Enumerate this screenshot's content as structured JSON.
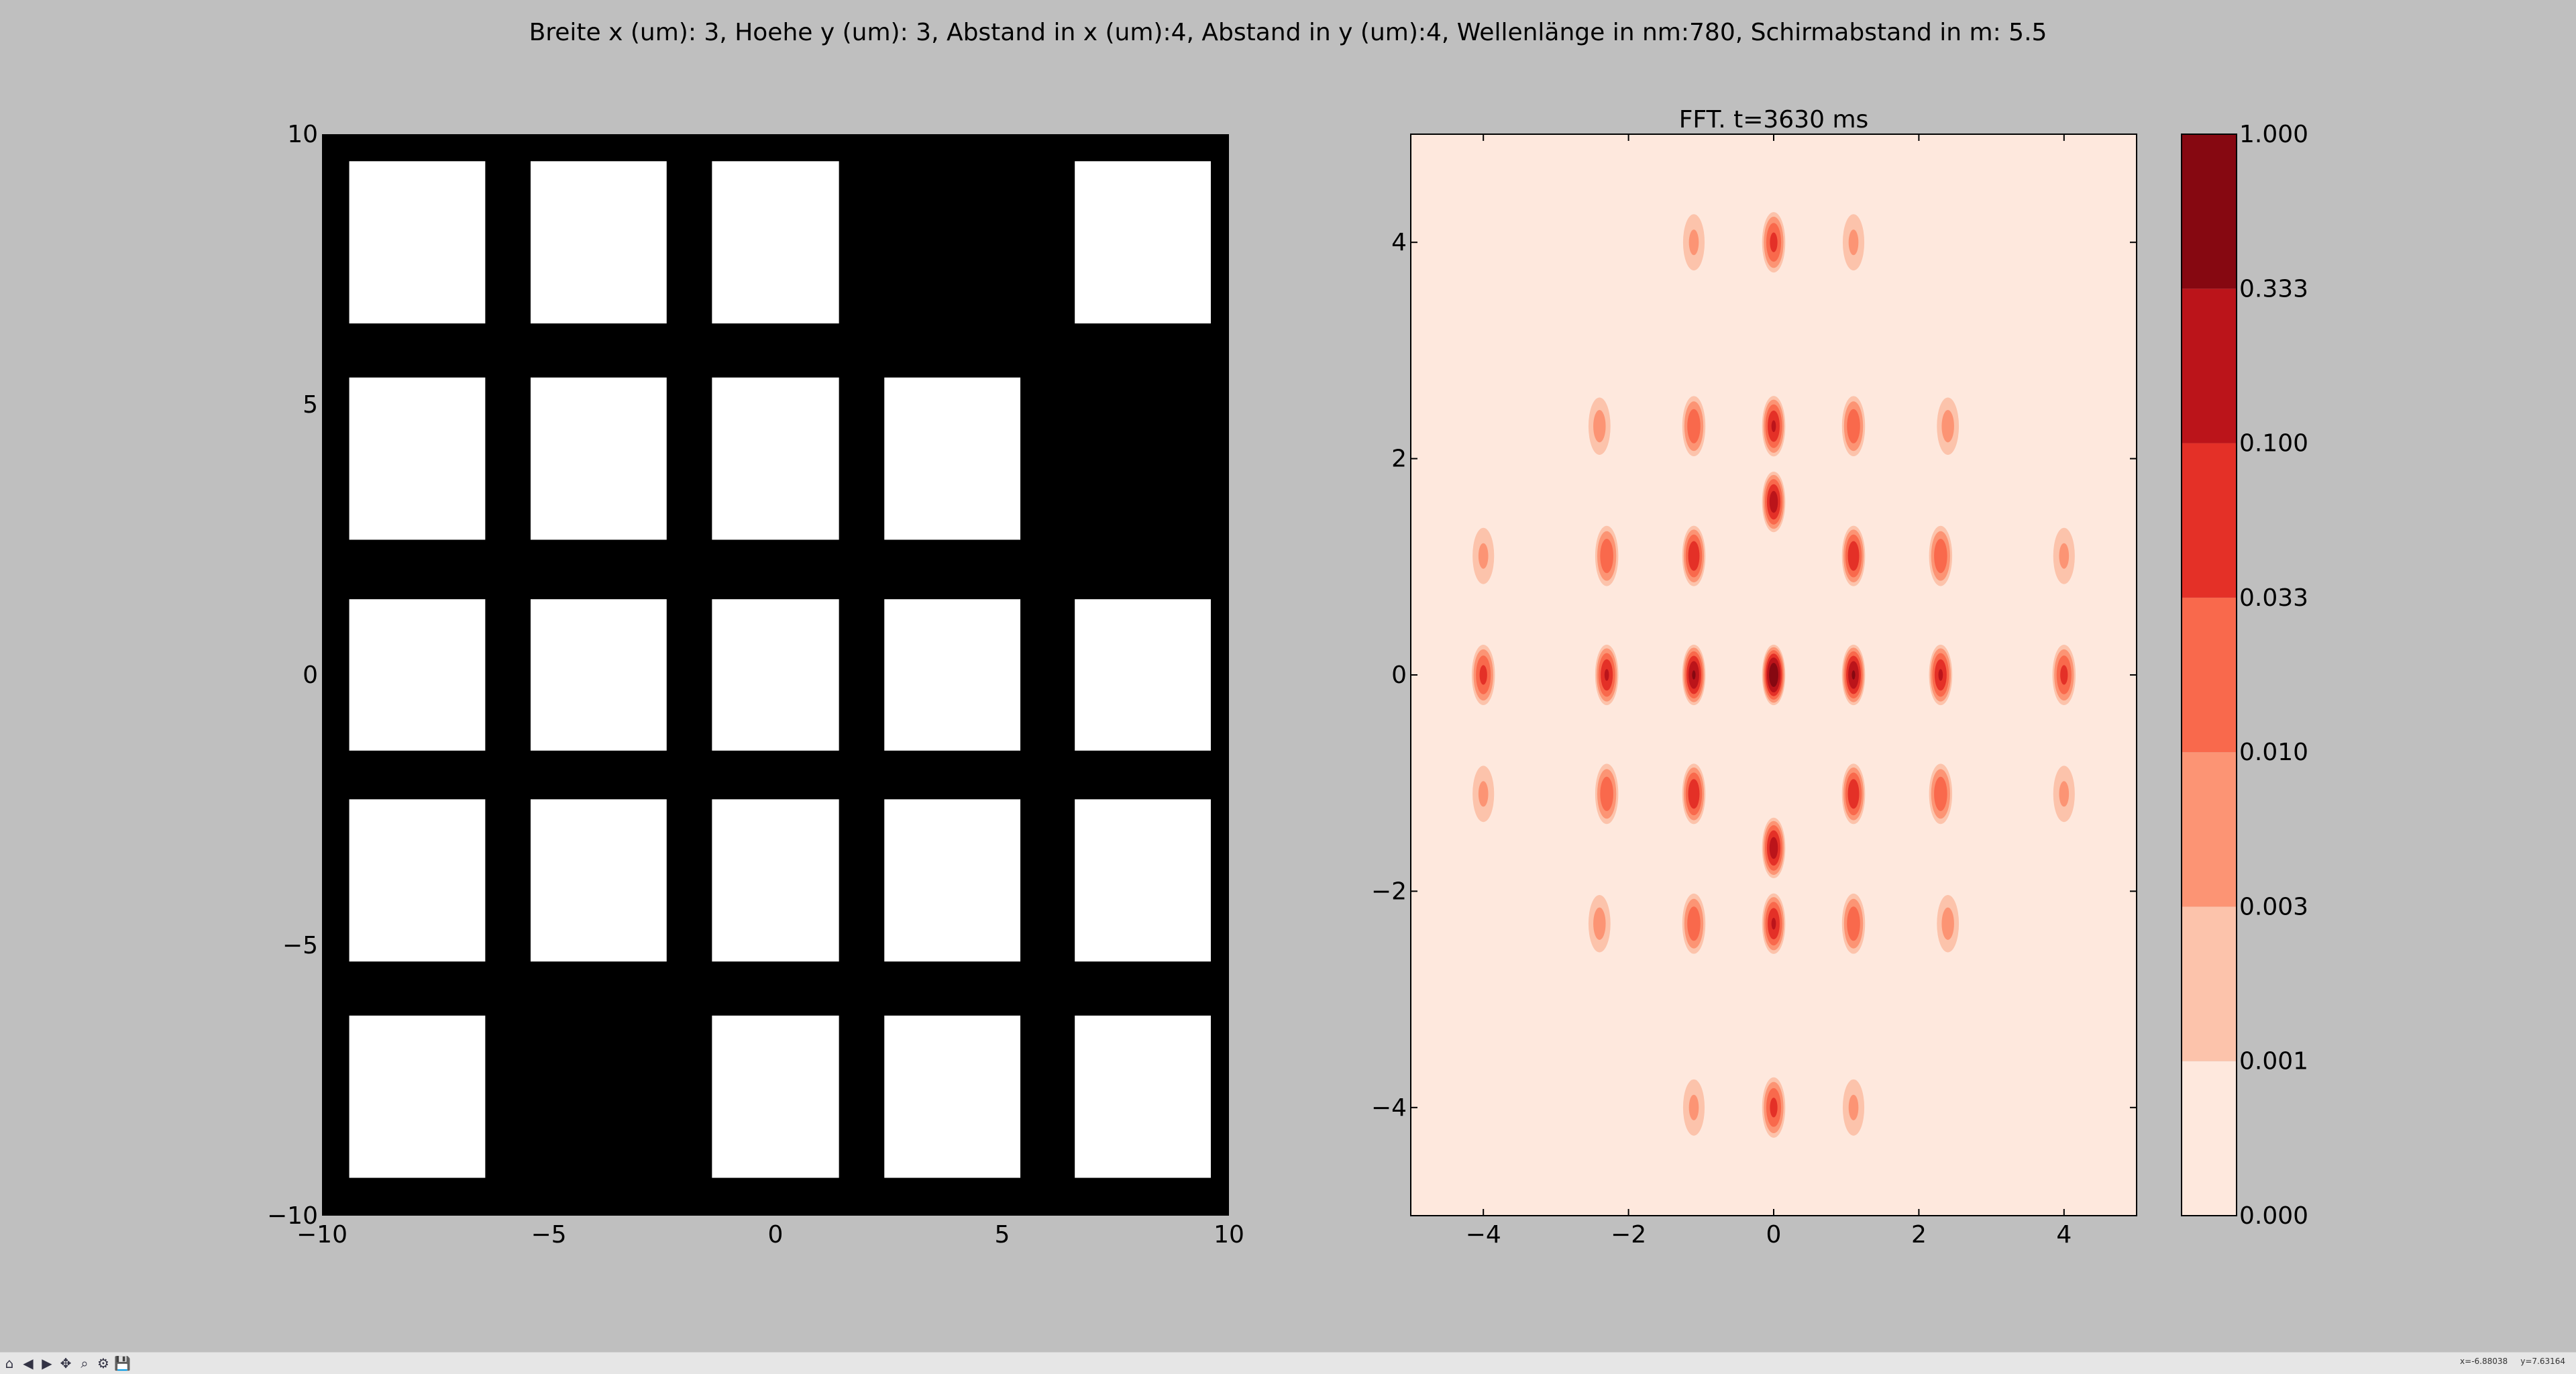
{
  "suptitle": "Breite x (um): 3, Hoehe y (um): 3, Abstand in x (um):4, Abstand in y (um):4, Wellenlänge in nm:780, Schirmabstand in m: 5.5",
  "chart_data": [
    {
      "type": "heatmap",
      "title": "",
      "description_of_cells": "aperture mask: white = open aperture, black = opaque",
      "xlim": [
        -10,
        10
      ],
      "ylim": [
        -10,
        10
      ],
      "x_ticks": [
        "−10",
        "−5",
        "0",
        "5",
        "10"
      ],
      "x_tick_values": [
        -10,
        -5,
        0,
        5,
        10
      ],
      "y_ticks": [
        "−10",
        "−5",
        "0",
        "5",
        "10"
      ],
      "y_tick_values": [
        -10,
        -5,
        0,
        5,
        10
      ],
      "background_color": "#000000",
      "aperture_color": "#ffffff",
      "apertures": [
        {
          "x0": -9.4,
          "x1": -6.4,
          "y0": 6.5,
          "y1": 9.5
        },
        {
          "x0": -5.4,
          "x1": -2.4,
          "y0": 6.5,
          "y1": 9.5
        },
        {
          "x0": -1.4,
          "x1": 1.4,
          "y0": 6.5,
          "y1": 9.5
        },
        {
          "x0": 6.6,
          "x1": 9.6,
          "y0": 6.5,
          "y1": 9.5
        },
        {
          "x0": -9.4,
          "x1": -6.4,
          "y0": 2.5,
          "y1": 5.5
        },
        {
          "x0": -5.4,
          "x1": -2.4,
          "y0": 2.5,
          "y1": 5.5
        },
        {
          "x0": -1.4,
          "x1": 1.4,
          "y0": 2.5,
          "y1": 5.5
        },
        {
          "x0": 2.4,
          "x1": 5.4,
          "y0": 2.5,
          "y1": 5.5
        },
        {
          "x0": -9.4,
          "x1": -6.4,
          "y0": -1.4,
          "y1": 1.4
        },
        {
          "x0": -5.4,
          "x1": -2.4,
          "y0": -1.4,
          "y1": 1.4
        },
        {
          "x0": -1.4,
          "x1": 1.4,
          "y0": -1.4,
          "y1": 1.4
        },
        {
          "x0": 2.4,
          "x1": 5.4,
          "y0": -1.4,
          "y1": 1.4
        },
        {
          "x0": 6.6,
          "x1": 9.6,
          "y0": -1.4,
          "y1": 1.4
        },
        {
          "x0": -9.4,
          "x1": -6.4,
          "y0": -5.3,
          "y1": -2.3
        },
        {
          "x0": -5.4,
          "x1": -2.4,
          "y0": -5.3,
          "y1": -2.3
        },
        {
          "x0": -1.4,
          "x1": 1.4,
          "y0": -5.3,
          "y1": -2.3
        },
        {
          "x0": 2.4,
          "x1": 5.4,
          "y0": -5.3,
          "y1": -2.3
        },
        {
          "x0": 6.6,
          "x1": 9.6,
          "y0": -5.3,
          "y1": -2.3
        },
        {
          "x0": -9.4,
          "x1": -6.4,
          "y0": -9.3,
          "y1": -6.3
        },
        {
          "x0": -1.4,
          "x1": 1.4,
          "y0": -9.3,
          "y1": -6.3
        },
        {
          "x0": 2.4,
          "x1": 5.4,
          "y0": -9.3,
          "y1": -6.3
        },
        {
          "x0": 6.6,
          "x1": 9.6,
          "y0": -9.3,
          "y1": -6.3
        }
      ]
    },
    {
      "type": "heatmap",
      "title": "FFT. t=3630 ms",
      "description_of_cells": "filled contour plot of diffraction intensity",
      "xlim": [
        -5,
        5
      ],
      "ylim": [
        -5,
        5
      ],
      "x_ticks": [
        "−4",
        "−2",
        "0",
        "2",
        "4"
      ],
      "x_tick_values": [
        -4,
        -2,
        0,
        2,
        4
      ],
      "y_ticks": [
        "−4",
        "−2",
        "0",
        "2",
        "4"
      ],
      "y_tick_values": [
        -4,
        -2,
        0,
        2,
        4
      ],
      "colormap": "Reds",
      "levels": [
        0.0,
        0.001,
        0.003,
        0.01,
        0.033,
        0.1,
        0.333,
        1.0
      ],
      "level_labels": [
        "0.000",
        "0.001",
        "0.003",
        "0.010",
        "0.033",
        "0.100",
        "0.333",
        "1.000"
      ],
      "level_colors": [
        "#fee8dd",
        "#fcc3ab",
        "#fc9474",
        "#f9694c",
        "#e43027",
        "#bb141a",
        "#860811"
      ],
      "peaks": [
        {
          "x": 0,
          "y": 0,
          "value": 1.0
        },
        {
          "x": -1.1,
          "y": 0,
          "value": 0.34
        },
        {
          "x": 1.1,
          "y": 0,
          "value": 0.34
        },
        {
          "x": 0,
          "y": 1.6,
          "value": 0.2
        },
        {
          "x": 0,
          "y": -1.6,
          "value": 0.2
        },
        {
          "x": -2.3,
          "y": 0,
          "value": 0.12
        },
        {
          "x": 2.3,
          "y": 0,
          "value": 0.12
        },
        {
          "x": -4.0,
          "y": 0,
          "value": 0.05
        },
        {
          "x": 4.0,
          "y": 0,
          "value": 0.05
        },
        {
          "x": 0,
          "y": 2.3,
          "value": 0.12
        },
        {
          "x": 0,
          "y": -2.3,
          "value": 0.12
        },
        {
          "x": 0,
          "y": 4.0,
          "value": 0.05
        },
        {
          "x": 0,
          "y": -4.0,
          "value": 0.05
        },
        {
          "x": -1.1,
          "y": 2.3,
          "value": 0.03
        },
        {
          "x": 1.1,
          "y": 2.3,
          "value": 0.03
        },
        {
          "x": -1.1,
          "y": -2.3,
          "value": 0.03
        },
        {
          "x": 1.1,
          "y": -2.3,
          "value": 0.03
        },
        {
          "x": -2.3,
          "y": 1.1,
          "value": 0.03
        },
        {
          "x": 2.3,
          "y": 1.1,
          "value": 0.03
        },
        {
          "x": -2.3,
          "y": -1.1,
          "value": 0.03
        },
        {
          "x": 2.3,
          "y": -1.1,
          "value": 0.03
        },
        {
          "x": -1.1,
          "y": 1.1,
          "value": 0.1
        },
        {
          "x": 1.1,
          "y": 1.1,
          "value": 0.1
        },
        {
          "x": -1.1,
          "y": -1.1,
          "value": 0.1
        },
        {
          "x": 1.1,
          "y": -1.1,
          "value": 0.1
        },
        {
          "x": -2.4,
          "y": 2.3,
          "value": 0.005
        },
        {
          "x": 2.4,
          "y": 2.3,
          "value": 0.005
        },
        {
          "x": -2.4,
          "y": -2.3,
          "value": 0.005
        },
        {
          "x": 2.4,
          "y": -2.3,
          "value": 0.005
        },
        {
          "x": -4.0,
          "y": 1.1,
          "value": 0.004
        },
        {
          "x": 4.0,
          "y": 1.1,
          "value": 0.004
        },
        {
          "x": -4.0,
          "y": -1.1,
          "value": 0.004
        },
        {
          "x": 4.0,
          "y": -1.1,
          "value": 0.004
        },
        {
          "x": -1.1,
          "y": 4.0,
          "value": 0.004
        },
        {
          "x": 1.1,
          "y": 4.0,
          "value": 0.004
        },
        {
          "x": -1.1,
          "y": -4.0,
          "value": 0.004
        },
        {
          "x": 1.1,
          "y": -4.0,
          "value": 0.004
        }
      ]
    }
  ],
  "toolbar": {
    "buttons": [
      "home-icon",
      "back-icon",
      "forward-icon",
      "pan-icon",
      "zoom-icon",
      "configure-icon",
      "save-icon"
    ],
    "glyphs": [
      "⌂",
      "◀",
      "▶",
      "✥",
      "⌕",
      "⚙",
      "💾"
    ]
  },
  "coords_text": "x=-6.88038     y=7.63164"
}
